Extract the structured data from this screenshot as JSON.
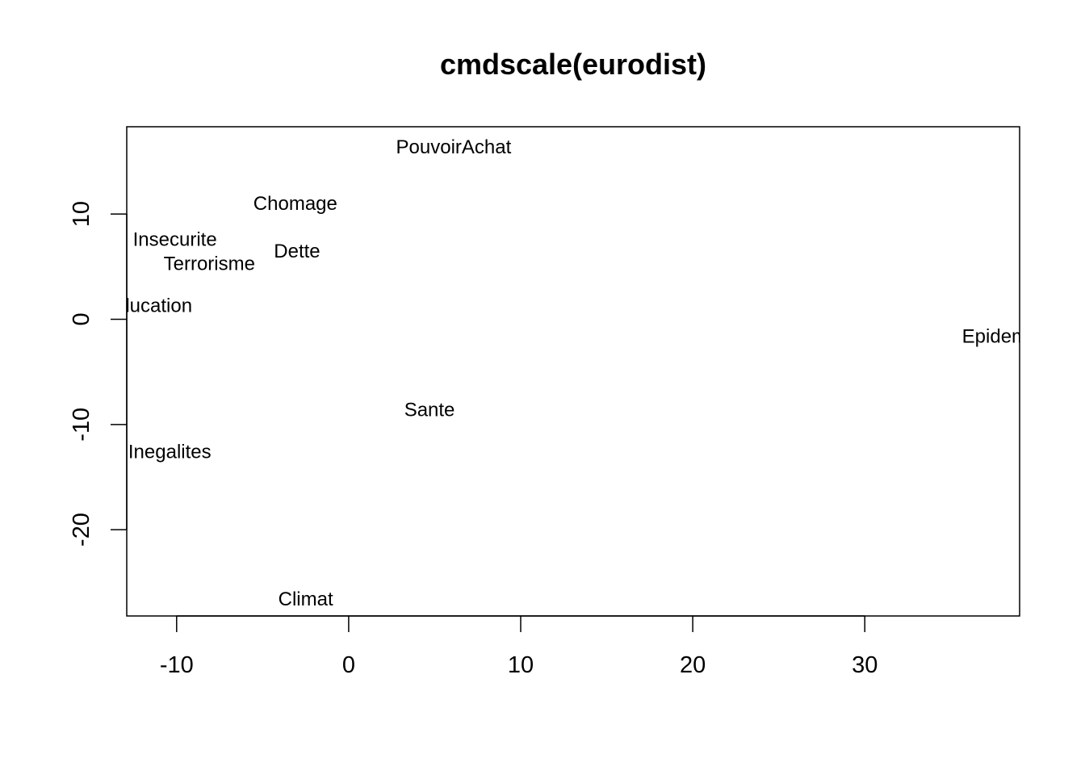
{
  "chart_data": {
    "type": "scatter",
    "title": "cmdscale(eurodist)",
    "xlabel": "",
    "ylabel": "",
    "xlim": [
      -12.9,
      39.0
    ],
    "ylim": [
      -28.2,
      18.3
    ],
    "xticks": [
      -10,
      0,
      10,
      20,
      30
    ],
    "yticks": [
      -20,
      -10,
      0,
      10
    ],
    "grid": false,
    "legend": "none",
    "points": [
      {
        "label": "PouvoirAchat",
        "x": 6.1,
        "y": 16.4
      },
      {
        "label": "Chomage",
        "x": -3.1,
        "y": 11.0
      },
      {
        "label": "Insecurite",
        "x": -10.1,
        "y": 7.6
      },
      {
        "label": "Dette",
        "x": -3.0,
        "y": 6.5
      },
      {
        "label": "Terrorisme",
        "x": -8.1,
        "y": 5.3
      },
      {
        "label": "Education",
        "x": -11.6,
        "y": 1.3
      },
      {
        "label": "Epidemie",
        "x": 38.0,
        "y": -1.6
      },
      {
        "label": "Sante",
        "x": 4.7,
        "y": -8.6
      },
      {
        "label": "Inegalites",
        "x": -10.4,
        "y": -12.6
      },
      {
        "label": "Climat",
        "x": -2.5,
        "y": -26.6
      }
    ]
  }
}
